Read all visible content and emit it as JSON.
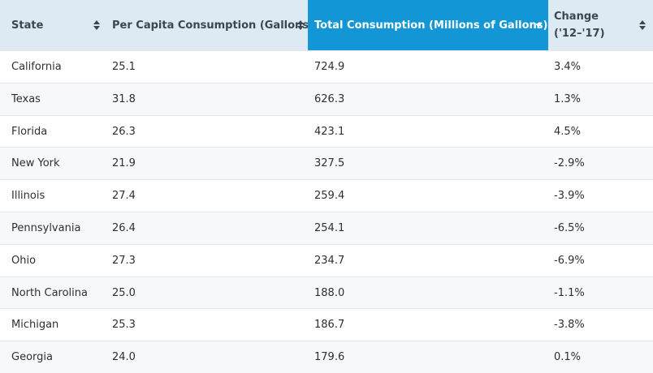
{
  "table": {
    "columns": [
      {
        "label": "State",
        "active": false
      },
      {
        "label": "Per Capita Consumption (Gallons)",
        "active": false
      },
      {
        "label": "Total Consumption (Millions of Gallons)",
        "active": true,
        "sort": "descending"
      },
      {
        "label": "Change ('12–'17)",
        "active": false
      }
    ],
    "rows": [
      {
        "state": "California",
        "per_capita": "25.1",
        "total": "724.9",
        "change": "3.4%"
      },
      {
        "state": "Texas",
        "per_capita": "31.8",
        "total": "626.3",
        "change": "1.3%"
      },
      {
        "state": "Florida",
        "per_capita": "26.3",
        "total": "423.1",
        "change": "4.5%"
      },
      {
        "state": "New York",
        "per_capita": "21.9",
        "total": "327.5",
        "change": "-2.9%"
      },
      {
        "state": "Illinois",
        "per_capita": "27.4",
        "total": "259.4",
        "change": "-3.9%"
      },
      {
        "state": "Pennsylvania",
        "per_capita": "26.4",
        "total": "254.1",
        "change": "-6.5%"
      },
      {
        "state": "Ohio",
        "per_capita": "27.3",
        "total": "234.7",
        "change": "-6.9%"
      },
      {
        "state": "North Carolina",
        "per_capita": "25.0",
        "total": "188.0",
        "change": "-1.1%"
      },
      {
        "state": "Michigan",
        "per_capita": "25.3",
        "total": "186.7",
        "change": "-3.8%"
      },
      {
        "state": "Georgia",
        "per_capita": "24.0",
        "total": "179.6",
        "change": "0.1%"
      }
    ]
  },
  "colors": {
    "header_bg": "#dde9f3",
    "active_header_bg": "#1296d6",
    "header_text": "#3a4651",
    "alt_row_bg": "#f7f8f9"
  }
}
